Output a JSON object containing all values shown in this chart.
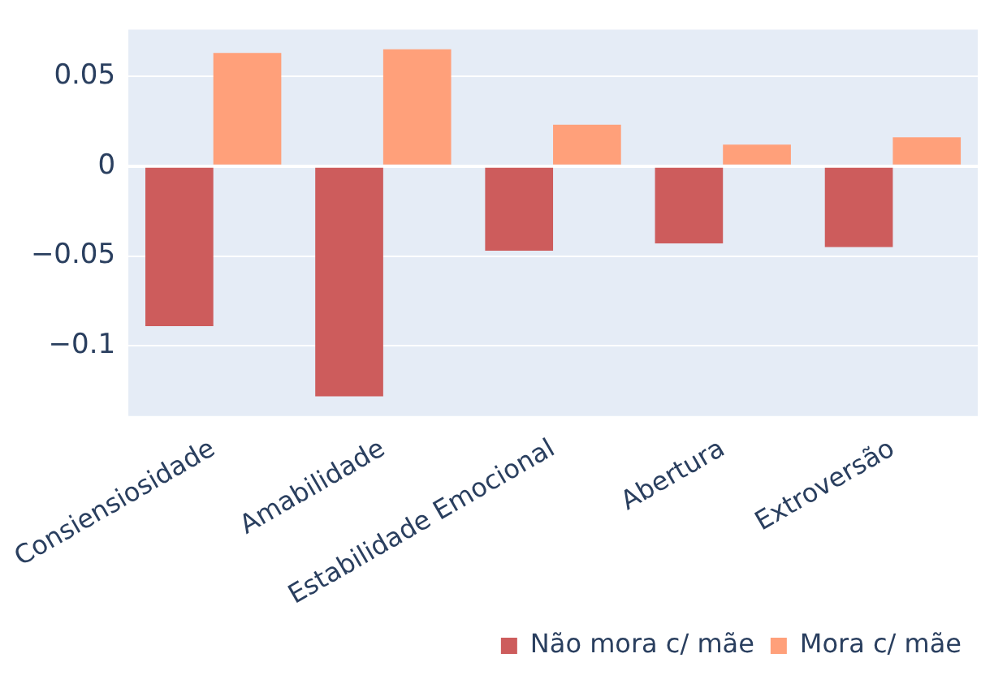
{
  "chart_data": {
    "type": "bar",
    "categories": [
      "Consiensiosidade",
      "Amabilidade",
      "Estabilidade Emocional",
      "Abertura",
      "Extroversão"
    ],
    "series": [
      {
        "name": "Não mora c/ mãe",
        "color": "#cd5c5c",
        "values": [
          -0.089,
          -0.128,
          -0.047,
          -0.043,
          -0.045
        ]
      },
      {
        "name": "Mora c/ mãe",
        "color": "#ffa07a",
        "values": [
          0.063,
          0.065,
          0.023,
          0.012,
          0.016
        ]
      }
    ],
    "ylim": [
      -0.139,
      0.076
    ],
    "yticks": [
      {
        "value": -0.1,
        "label": "−0.1"
      },
      {
        "value": -0.05,
        "label": "−0.05"
      },
      {
        "value": 0,
        "label": "0"
      },
      {
        "value": 0.05,
        "label": "0.05"
      }
    ],
    "grid": "y",
    "legend": "bottom right"
  }
}
